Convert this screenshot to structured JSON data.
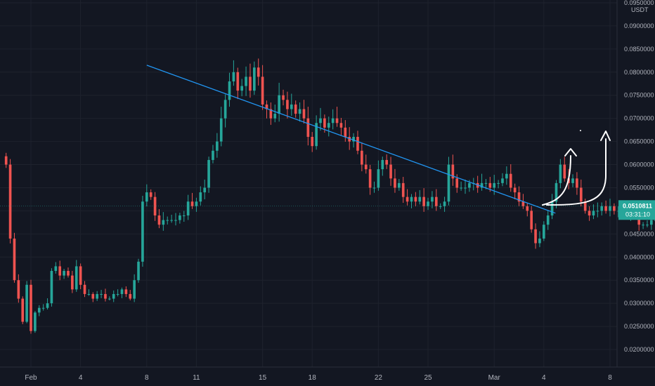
{
  "chart_data": {
    "type": "candlestick",
    "currency": "USDT",
    "ylim": [
      0.0175,
      0.095
    ],
    "y_ticks": [
      "0.0950000",
      "0.0900000",
      "0.0850000",
      "0.0800000",
      "0.0750000",
      "0.0700000",
      "0.0650000",
      "0.0600000",
      "0.0550000",
      "0.0500000",
      "0.0450000",
      "0.0400000",
      "0.0350000",
      "0.0300000",
      "0.0250000",
      "0.0200000"
    ],
    "y_tick_values": [
      0.095,
      0.09,
      0.085,
      0.08,
      0.075,
      0.07,
      0.065,
      0.06,
      0.055,
      0.05,
      0.045,
      0.04,
      0.035,
      0.03,
      0.025,
      0.02
    ],
    "x_ticks": [
      {
        "label": "Feb",
        "day": 1
      },
      {
        "label": "4",
        "day": 4
      },
      {
        "label": "8",
        "day": 8
      },
      {
        "label": "11",
        "day": 11
      },
      {
        "label": "15",
        "day": 15
      },
      {
        "label": "18",
        "day": 18
      },
      {
        "label": "22",
        "day": 22
      },
      {
        "label": "25",
        "day": 25
      },
      {
        "label": "Mar",
        "day": 29
      },
      {
        "label": "4",
        "day": 32
      },
      {
        "label": "8",
        "day": 36
      }
    ],
    "last_price": "0.0510811",
    "last_price_value": 0.0510811,
    "countdown": "03:31:10",
    "trendline": {
      "from": {
        "day": 8.0,
        "price": 0.0815
      },
      "to": {
        "day": 32.7,
        "price": 0.0495
      }
    },
    "colors": {
      "up": "#26a69a",
      "down": "#ef5350",
      "trendline": "#2196f3",
      "background": "#131722",
      "grid": "#1e222d",
      "last_price_bg": "#26a69a"
    },
    "candles_per_day": 4,
    "start_day": -0.5,
    "closes": [
      0.06,
      0.044,
      0.035,
      0.031,
      0.026,
      0.034,
      0.024,
      0.028,
      0.029,
      0.029,
      0.03,
      0.037,
      0.038,
      0.036,
      0.037,
      0.036,
      0.033,
      0.038,
      0.034,
      0.032,
      0.032,
      0.031,
      0.032,
      0.032,
      0.031,
      0.031,
      0.032,
      0.032,
      0.033,
      0.032,
      0.031,
      0.035,
      0.039,
      0.052,
      0.054,
      0.053,
      0.049,
      0.047,
      0.048,
      0.048,
      0.048,
      0.048,
      0.049,
      0.049,
      0.052,
      0.051,
      0.052,
      0.054,
      0.055,
      0.061,
      0.063,
      0.065,
      0.07,
      0.074,
      0.078,
      0.08,
      0.076,
      0.077,
      0.079,
      0.076,
      0.081,
      0.079,
      0.073,
      0.072,
      0.07,
      0.071,
      0.075,
      0.074,
      0.072,
      0.073,
      0.071,
      0.072,
      0.07,
      0.066,
      0.064,
      0.069,
      0.07,
      0.068,
      0.069,
      0.07,
      0.069,
      0.068,
      0.066,
      0.065,
      0.066,
      0.063,
      0.06,
      0.059,
      0.055,
      0.055,
      0.059,
      0.061,
      0.06,
      0.057,
      0.055,
      0.056,
      0.053,
      0.052,
      0.053,
      0.052,
      0.053,
      0.051,
      0.052,
      0.053,
      0.051,
      0.051,
      0.052,
      0.06,
      0.057,
      0.055,
      0.055,
      0.055,
      0.056,
      0.056,
      0.055,
      0.056,
      0.056,
      0.055,
      0.056,
      0.056,
      0.057,
      0.058,
      0.055,
      0.054,
      0.052,
      0.051,
      0.05,
      0.046,
      0.043,
      0.044,
      0.047,
      0.049,
      0.052,
      0.056,
      0.06,
      0.057,
      0.056,
      0.057,
      0.055,
      0.052,
      0.05,
      0.049,
      0.05,
      0.05,
      0.051,
      0.05,
      0.051,
      0.05,
      0.05,
      0.05,
      0.049,
      0.05,
      0.049,
      0.047,
      0.047,
      0.047,
      0.048,
      0.048,
      0.049,
      0.049,
      0.05,
      0.051,
      0.051,
      0.051,
      0.05,
      0.051,
      0.051,
      0.0511
    ]
  },
  "annotations": {
    "drawn_arrows": 2
  }
}
